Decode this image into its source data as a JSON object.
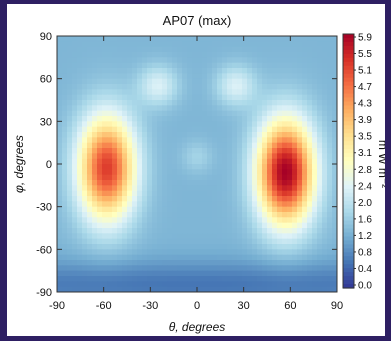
{
  "chart_data": {
    "type": "heatmap",
    "title": "AP07 (max)",
    "xlabel": "θ, degrees",
    "ylabel": "φ, degrees",
    "colorbar_label": "m W m⁻²",
    "xlim": [
      -90,
      90
    ],
    "ylim": [
      -90,
      90
    ],
    "x_ticks": [
      "-90",
      "-60",
      "-30",
      "0",
      "30",
      "60",
      "90"
    ],
    "y_ticks": [
      "90",
      "60",
      "30",
      "0",
      "-30",
      "-60",
      "-90"
    ],
    "colorbar_ticks": [
      "5.9",
      "5.5",
      "5.1",
      "4.7",
      "4.3",
      "3.9",
      "3.5",
      "3.1",
      "2.8",
      "2.4",
      "2.0",
      "1.6",
      "1.2",
      "0.8",
      "0.4",
      "0.0"
    ],
    "value_range": [
      0.0,
      5.9
    ],
    "colormap": [
      "#313695",
      "#4575b4",
      "#74add1",
      "#abd9e9",
      "#e0f3f8",
      "#ffffbf",
      "#fee090",
      "#fdae61",
      "#f46d43",
      "#d73027",
      "#a50026"
    ],
    "background_value": 1.3,
    "peaks": [
      {
        "theta": -58,
        "phi": -3,
        "value": 5.2
      },
      {
        "theta": 57,
        "phi": -6,
        "value": 5.9
      }
    ],
    "features": [
      {
        "theta": -25,
        "phi": 55,
        "value": 2.3
      },
      {
        "theta": 25,
        "phi": 55,
        "value": 2.3
      },
      {
        "theta": 0,
        "phi": 5,
        "value": 1.7
      },
      {
        "theta": 0,
        "phi": -85,
        "value": 0.6
      }
    ]
  }
}
